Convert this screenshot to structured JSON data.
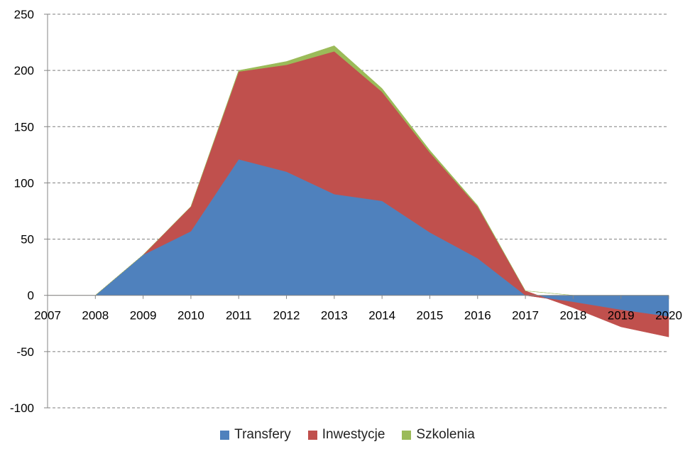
{
  "chart_data": {
    "type": "area",
    "stacked": true,
    "x": [
      "2007",
      "2008",
      "2009",
      "2010",
      "2011",
      "2012",
      "2013",
      "2014",
      "2015",
      "2016",
      "2017",
      "2018",
      "2019",
      "2020"
    ],
    "series": [
      {
        "name": "Transfery",
        "color": "#4F81BD",
        "values": [
          0,
          0,
          36,
          57,
          121,
          110,
          90,
          84,
          56,
          33,
          0,
          -6,
          -13,
          -19
        ]
      },
      {
        "name": "Inwestycje",
        "color": "#C0504D",
        "values": [
          0,
          0,
          0,
          22,
          78,
          95,
          127,
          97,
          71,
          46,
          4,
          -5,
          -15,
          -18
        ]
      },
      {
        "name": "Szkolenia",
        "color": "#9BBB59",
        "values": [
          0,
          0,
          0,
          0,
          1,
          3,
          5,
          3,
          2,
          1,
          0,
          0,
          0,
          0
        ]
      }
    ],
    "ylim": [
      -100,
      250
    ],
    "yticks": [
      -100,
      -50,
      0,
      50,
      100,
      150,
      200,
      250
    ],
    "ytick_labels": [
      "-100",
      "-50",
      "0",
      "50",
      "100",
      "150",
      "200",
      "250"
    ],
    "grid": true,
    "legend_position": "bottom"
  }
}
